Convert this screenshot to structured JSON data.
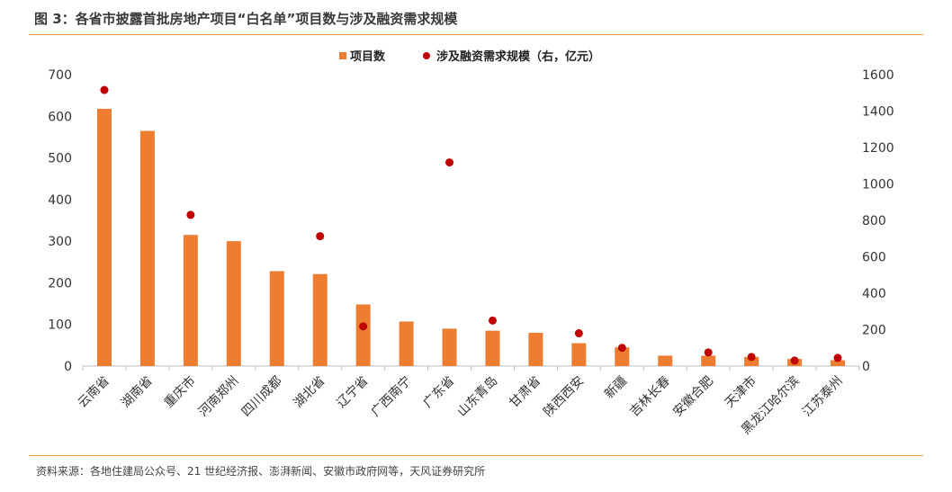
{
  "figure": {
    "title": "图 3：各省市披露首批房地产项目“白名单”项目数与涉及融资需求规模",
    "source": "资料来源：各地住建局公众号、21 世纪经济报、澎湃新闻、安徽市政府网等，天风证券研究所"
  },
  "colors": {
    "bar": "#ed7d31",
    "dot": "#c00000",
    "rule": "#e8a04f",
    "axis": "#bfbfbf"
  },
  "chart_data": {
    "type": "bar",
    "categories": [
      "云南省",
      "湖南省",
      "重庆市",
      "河南郑州",
      "四川成都",
      "湖北省",
      "辽宁省",
      "广西南宁",
      "广东省",
      "山东青岛",
      "甘肃省",
      "陕西西安",
      "新疆",
      "吉林长春",
      "安徽合肥",
      "天津市",
      "黑龙江哈尔滨",
      "江苏泰州"
    ],
    "series": [
      {
        "name": "项目数",
        "type": "bar",
        "axis": "left",
        "values": [
          618,
          565,
          315,
          300,
          228,
          221,
          148,
          107,
          90,
          85,
          80,
          55,
          45,
          25,
          25,
          22,
          17,
          14
        ]
      },
      {
        "name": "涉及融资需求规模（右，亿元）",
        "type": "scatter",
        "axis": "right",
        "values": [
          1516,
          null,
          830,
          null,
          null,
          713,
          218,
          null,
          1118,
          250,
          null,
          180,
          100,
          null,
          75,
          50,
          30,
          45
        ]
      }
    ],
    "y_left": {
      "min": 0,
      "max": 700,
      "ticks": [
        0,
        100,
        200,
        300,
        400,
        500,
        600,
        700
      ]
    },
    "y_right": {
      "min": 0,
      "max": 1600,
      "ticks": [
        0,
        200,
        400,
        600,
        800,
        1000,
        1200,
        1400,
        1600
      ]
    },
    "legend_position": "top-center",
    "grid": false
  }
}
